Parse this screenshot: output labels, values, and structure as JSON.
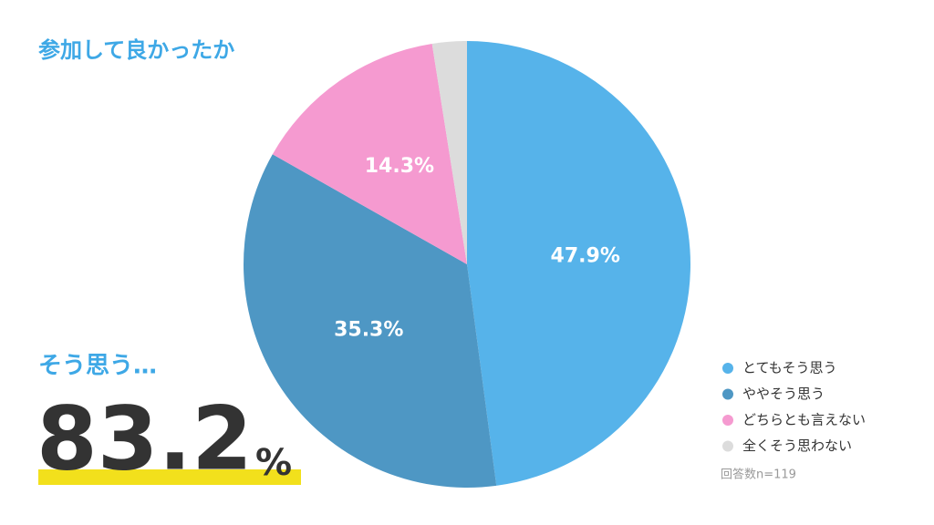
{
  "chart_data": {
    "type": "pie",
    "title": "参加して良かったか",
    "categories": [
      "とてもそう思う",
      "ややそう思う",
      "どちらとも言えない",
      "全くそう思わない"
    ],
    "values": [
      47.9,
      35.3,
      14.3,
      2.5
    ],
    "value_labels": [
      "47.9%",
      "35.3%",
      "14.3%",
      null
    ],
    "colors": [
      "#56b3ea",
      "#4e97c4",
      "#f59ad0",
      "#dcdcdc"
    ],
    "legend": "bottom-right",
    "annotation": "そう思う…",
    "highlight_number": "83.2",
    "highlight_unit": "%",
    "note": "回答数n=119"
  }
}
